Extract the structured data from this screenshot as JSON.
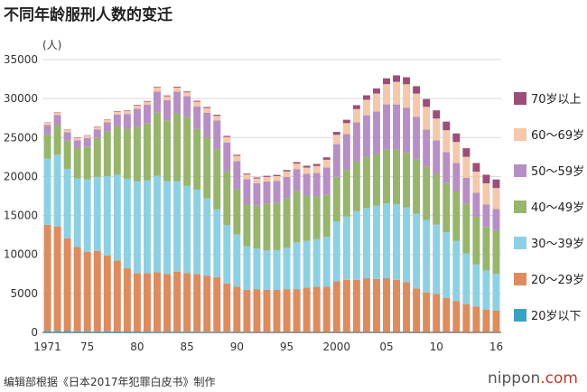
{
  "title": "不同年龄服刑人数的变迁",
  "source": "编辑部根据《日本2017年犯罪白皮书》制作",
  "brand": {
    "name": "nippon",
    "suffix": ".com"
  },
  "chart_data": {
    "type": "stacked-bar",
    "title": "不同年龄服刑人数的变迁",
    "ylabel": "(人)",
    "ylim": [
      0,
      35000
    ],
    "yticks": [
      0,
      5000,
      10000,
      15000,
      20000,
      25000,
      30000,
      35000
    ],
    "xtick_labels": [
      {
        "index": 0,
        "label": "1971"
      },
      {
        "index": 4,
        "label": "75"
      },
      {
        "index": 9,
        "label": "80"
      },
      {
        "index": 14,
        "label": "85"
      },
      {
        "index": 19,
        "label": "90"
      },
      {
        "index": 24,
        "label": "95"
      },
      {
        "index": 29,
        "label": "2000"
      },
      {
        "index": 34,
        "label": "05"
      },
      {
        "index": 39,
        "label": "10"
      },
      {
        "index": 45,
        "label": "16"
      }
    ],
    "categories": [
      1971,
      1972,
      1973,
      1974,
      1975,
      1976,
      1977,
      1978,
      1979,
      1980,
      1981,
      1982,
      1983,
      1984,
      1985,
      1986,
      1987,
      1988,
      1989,
      1990,
      1991,
      1992,
      1993,
      1994,
      1995,
      1996,
      1997,
      1998,
      1999,
      2000,
      2001,
      2002,
      2003,
      2004,
      2005,
      2006,
      2007,
      2008,
      2009,
      2010,
      2011,
      2012,
      2013,
      2014,
      2015,
      2016
    ],
    "series": [
      {
        "name": "20岁以下",
        "color": "#3ba1c3",
        "values": [
          200,
          200,
          180,
          150,
          150,
          150,
          150,
          130,
          120,
          110,
          110,
          100,
          100,
          100,
          100,
          100,
          90,
          80,
          70,
          60,
          60,
          50,
          50,
          50,
          50,
          50,
          50,
          50,
          50,
          50,
          50,
          50,
          50,
          50,
          50,
          50,
          40,
          40,
          40,
          40,
          40,
          30,
          30,
          30,
          30,
          20
        ]
      },
      {
        "name": "20～29岁",
        "color": "#dc8c5e",
        "values": [
          13600,
          13400,
          11900,
          10800,
          10200,
          10300,
          9700,
          9100,
          8100,
          7500,
          7500,
          7600,
          7400,
          7700,
          7500,
          7400,
          7200,
          7000,
          6200,
          5800,
          5400,
          5500,
          5400,
          5400,
          5500,
          5500,
          5700,
          5800,
          5800,
          6500,
          6700,
          6700,
          6900,
          6800,
          6900,
          6700,
          6400,
          5600,
          5100,
          4900,
          4400,
          4000,
          3600,
          3300,
          2900,
          2800
        ]
      },
      {
        "name": "30～39岁",
        "color": "#8ed0e3",
        "values": [
          8500,
          9200,
          8900,
          8800,
          9300,
          9500,
          10200,
          11000,
          11500,
          11800,
          11900,
          12400,
          11900,
          11600,
          11200,
          10800,
          9900,
          8700,
          7500,
          6700,
          5600,
          5200,
          5100,
          5100,
          5300,
          6000,
          6000,
          6100,
          6400,
          7700,
          8100,
          8800,
          9000,
          9400,
          9600,
          9700,
          9600,
          9600,
          9300,
          8900,
          8400,
          7700,
          6500,
          5400,
          5000,
          4700
        ]
      },
      {
        "name": "40～49岁",
        "color": "#97b56d",
        "values": [
          3100,
          3800,
          3600,
          3900,
          4200,
          5000,
          5700,
          6200,
          6400,
          7000,
          7300,
          8100,
          7800,
          8700,
          8800,
          7800,
          7800,
          7700,
          6900,
          5800,
          5400,
          5500,
          6000,
          6100,
          6400,
          6600,
          5800,
          5500,
          5400,
          5700,
          6000,
          6400,
          6600,
          6700,
          6900,
          7000,
          7000,
          7000,
          6800,
          6500,
          6300,
          6300,
          6400,
          6100,
          5600,
          5600
        ]
      },
      {
        "name": "50～59岁",
        "color": "#b78fc4",
        "values": [
          1200,
          1300,
          1100,
          1000,
          1100,
          1100,
          1200,
          1500,
          1900,
          2300,
          2400,
          2700,
          2600,
          2800,
          2700,
          2900,
          3200,
          3700,
          3700,
          3600,
          3200,
          2900,
          2800,
          2800,
          2700,
          2800,
          2800,
          3000,
          3500,
          4200,
          4600,
          5000,
          5300,
          5400,
          5800,
          5800,
          5800,
          5400,
          4800,
          4300,
          4000,
          3700,
          3300,
          3100,
          2900,
          2700
        ]
      },
      {
        "name": "60～69岁",
        "color": "#f4c8ab",
        "values": [
          300,
          300,
          300,
          300,
          300,
          300,
          300,
          400,
          400,
          400,
          400,
          500,
          500,
          500,
          500,
          600,
          600,
          600,
          700,
          700,
          600,
          600,
          600,
          600,
          700,
          700,
          800,
          900,
          1000,
          1200,
          1400,
          1700,
          2000,
          2300,
          2600,
          2900,
          3000,
          3000,
          2900,
          2800,
          2800,
          2700,
          2700,
          2700,
          2700,
          2700
        ]
      },
      {
        "name": "70岁以上",
        "color": "#9b4e78",
        "values": [
          40,
          50,
          50,
          50,
          50,
          60,
          60,
          70,
          70,
          80,
          80,
          90,
          100,
          110,
          110,
          120,
          130,
          140,
          140,
          130,
          120,
          130,
          140,
          160,
          180,
          200,
          230,
          260,
          310,
          370,
          430,
          500,
          570,
          650,
          750,
          830,
          900,
          950,
          1000,
          1050,
          1100,
          1100,
          1100,
          1100,
          1100,
          1100
        ]
      }
    ]
  }
}
